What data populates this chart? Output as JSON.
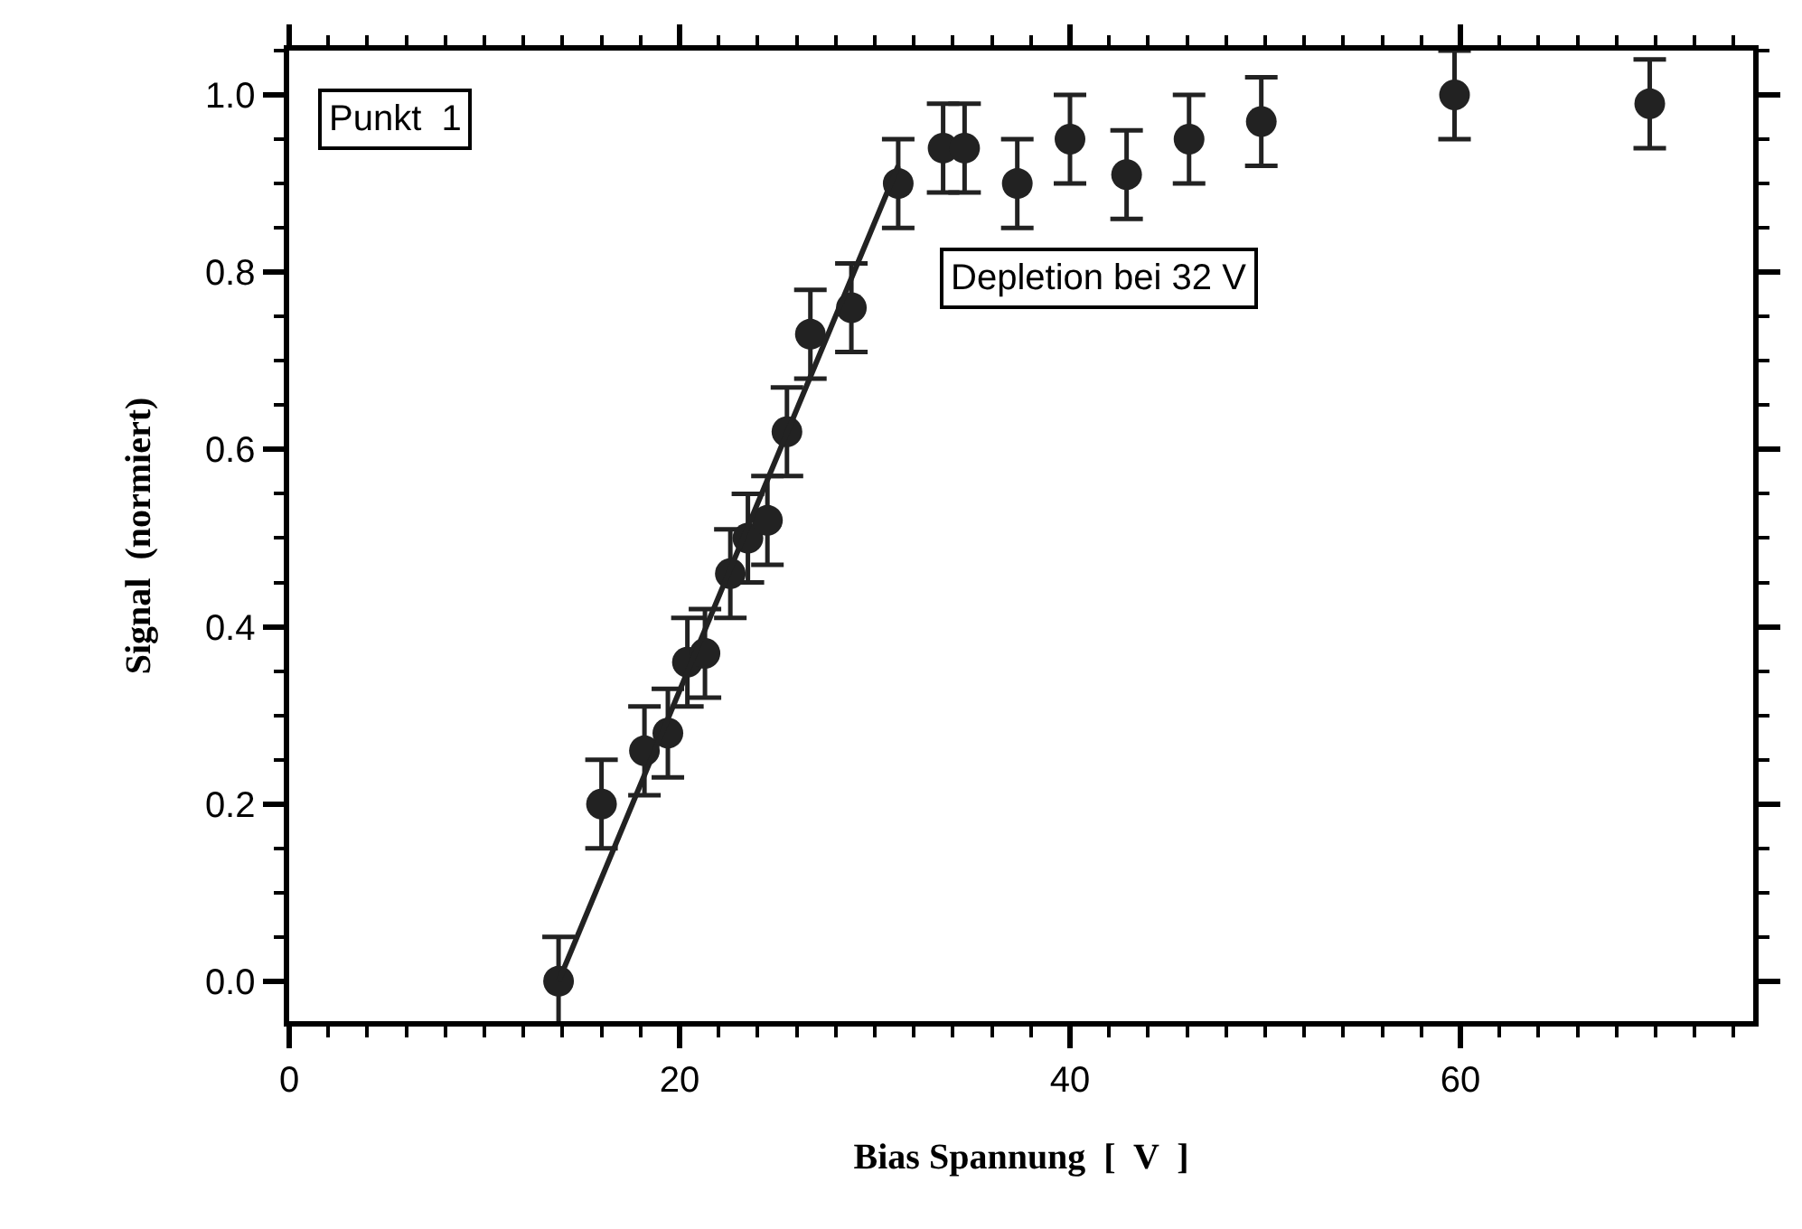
{
  "chart_data": {
    "type": "scatter",
    "xlabel": "Bias Spannung  [  V  ]",
    "ylabel": "Signal  (normiert)",
    "annotations": [
      "Punkt  1",
      "Depletion bei 32 V"
    ],
    "series": [
      {
        "color": "#222222",
        "marker": "circle",
        "x": [
          13.8,
          16.0,
          18.2,
          19.4,
          20.4,
          21.3,
          22.6,
          23.5,
          24.5,
          25.5,
          26.7,
          28.8,
          31.2,
          33.5,
          34.6,
          37.3,
          40.0,
          42.9,
          46.1,
          49.8,
          59.7,
          69.7
        ],
        "values": [
          0.0,
          0.2,
          0.26,
          0.28,
          0.36,
          0.37,
          0.46,
          0.5,
          0.52,
          0.62,
          0.73,
          0.76,
          0.9,
          0.94,
          0.94,
          0.9,
          0.95,
          0.91,
          0.95,
          0.97,
          1.0,
          0.99
        ],
        "errors": [
          0.05,
          0.05,
          0.05,
          0.05,
          0.05,
          0.05,
          0.05,
          0.05,
          0.05,
          0.05,
          0.05,
          0.05,
          0.05,
          0.05,
          0.05,
          0.05,
          0.05,
          0.05,
          0.05,
          0.05,
          0.05,
          0.05
        ]
      },
      {
        "type": "line",
        "color": "#222222",
        "line_style": "solid",
        "x": [
          13.8,
          31.2
        ],
        "values": [
          0.0,
          0.92
        ]
      }
    ],
    "xlim": [
      0,
      75
    ],
    "xticks": [
      0,
      20,
      40,
      60
    ],
    "ylim": [
      -0.045,
      1.05
    ],
    "yticks": [
      {
        "value": 0,
        "label": "0.0"
      },
      {
        "value": 0.2,
        "label": "0.2"
      },
      {
        "value": 0.4,
        "label": "0.4"
      },
      {
        "value": 0.6,
        "label": "0.6"
      },
      {
        "value": 0.8,
        "label": "0.8"
      },
      {
        "value": 1.0,
        "label": "1.0"
      }
    ]
  }
}
